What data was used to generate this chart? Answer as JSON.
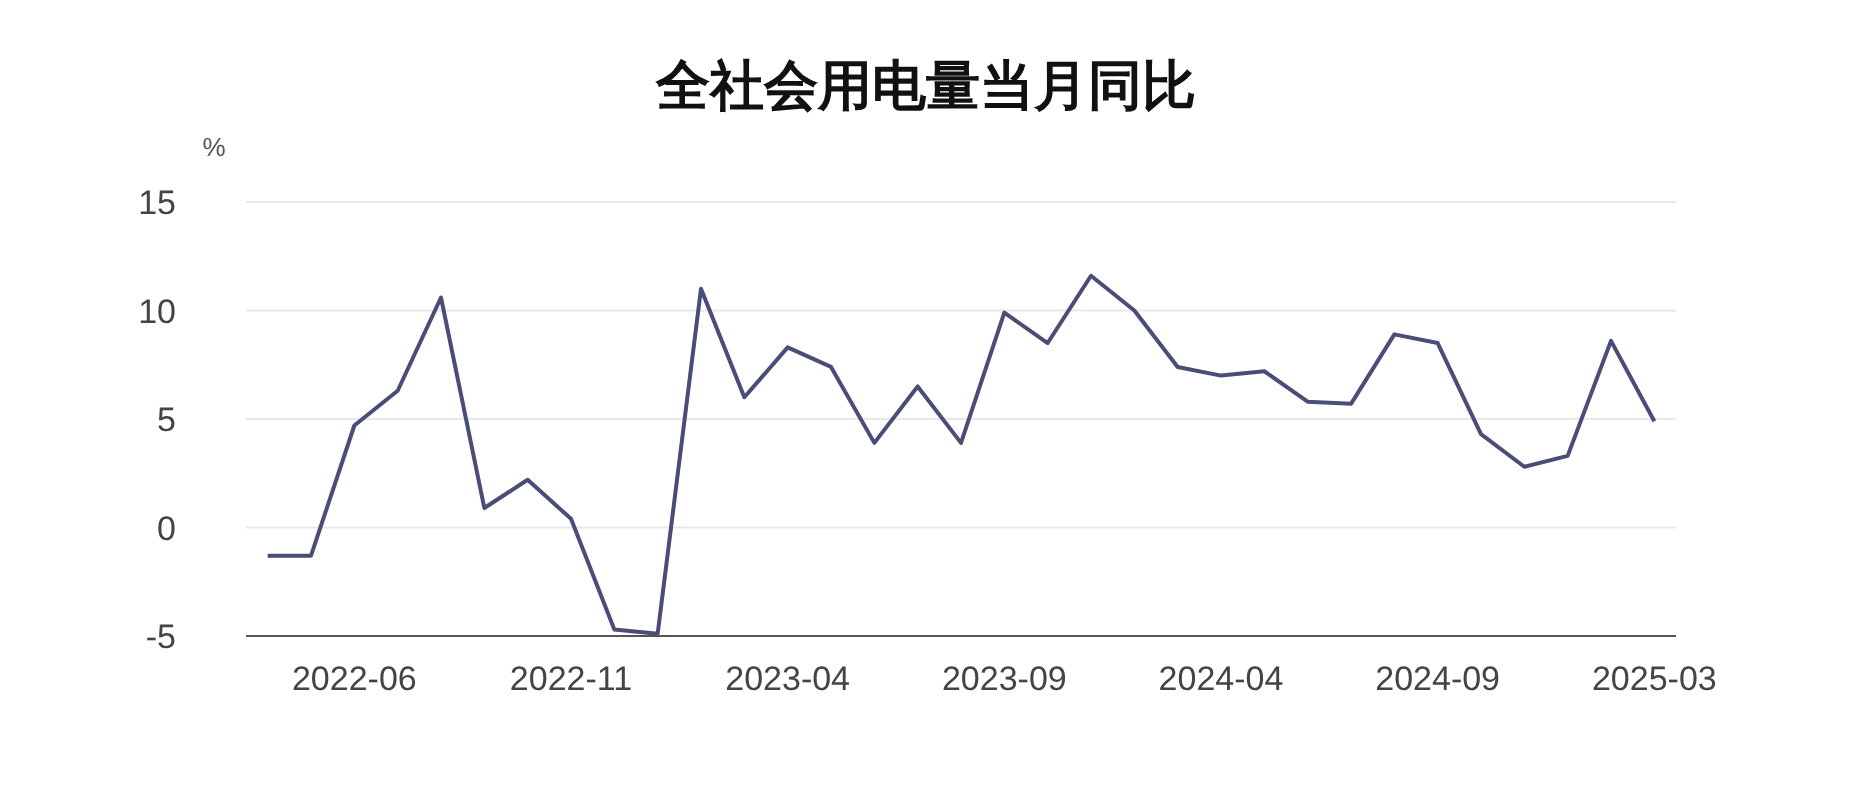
{
  "chart_data": {
    "type": "line",
    "title": "全社会用电量当月同比",
    "ylabel": "%",
    "categories": [
      null,
      null,
      "2022-06",
      null,
      null,
      null,
      null,
      "2022-11",
      null,
      null,
      null,
      null,
      "2023-04",
      null,
      null,
      null,
      null,
      "2023-09",
      null,
      null,
      null,
      null,
      "2024-04",
      null,
      null,
      null,
      null,
      "2024-09",
      null,
      null,
      null,
      null,
      "2025-03"
    ],
    "series": [
      {
        "color": "#4a4d78",
        "values": [
          -1.3,
          -1.3,
          4.7,
          6.3,
          10.6,
          0.9,
          2.2,
          0.4,
          -4.7,
          -4.9,
          11.0,
          6.0,
          8.3,
          7.4,
          3.9,
          6.5,
          3.9,
          9.9,
          8.5,
          11.6,
          10.0,
          7.4,
          7.0,
          7.2,
          5.8,
          5.7,
          8.9,
          8.5,
          4.3,
          2.8,
          3.3,
          8.6,
          4.9
        ]
      }
    ],
    "ylim": [
      -5,
      15
    ],
    "yticks": [
      -5,
      0,
      5,
      10,
      15
    ],
    "grid": "y",
    "marker": "none",
    "line_style": "solid"
  }
}
